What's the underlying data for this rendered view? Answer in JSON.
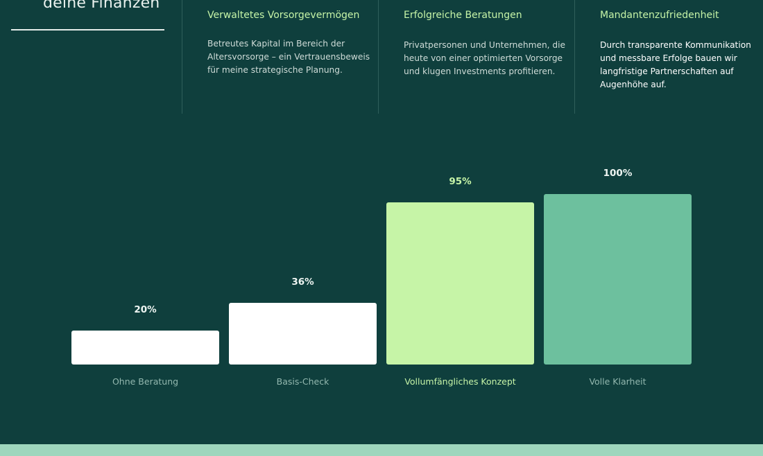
{
  "hero": {
    "title": "deine Finanzen"
  },
  "stats": [
    {
      "title": "Verwaltetes Vorsorgevermögen",
      "text": "Betreutes Kapital im Bereich der Altersvorsorge – ein Vertrauensbeweis für meine strategische Planung."
    },
    {
      "title": "Erfolgreiche Beratungen",
      "text": "Privatpersonen und Unternehmen, die heute von einer optimierten Vorsorge und klugen Investments profitieren."
    },
    {
      "title": "Mandantenzufriedenheit",
      "text": "Durch transparente Kommunikation und messbare Erfolge bauen wir langfristige Partnerschaften auf Augenhöhe auf."
    }
  ],
  "colors": {
    "background": "#0f3f3d",
    "accent_light_green": "#c6f4a7",
    "accent_teal": "#6dc09e",
    "bar_white": "#ffffff",
    "footer": "#9ed6bd"
  },
  "chart_data": {
    "type": "bar",
    "categories": [
      "Ohne Beratung",
      "Basis-Check",
      "Vollumfängliches Konzept",
      "Volle Klarheit"
    ],
    "values": [
      20,
      36,
      95,
      100
    ],
    "value_labels": [
      "20%",
      "36%",
      "95%",
      "100%"
    ],
    "bar_colors": [
      "#ffffff",
      "#ffffff",
      "#c6f4a7",
      "#6dc09e"
    ],
    "ylim": [
      0,
      100
    ],
    "grid": false,
    "legend": "none",
    "title": "",
    "xlabel": "",
    "ylabel": ""
  }
}
